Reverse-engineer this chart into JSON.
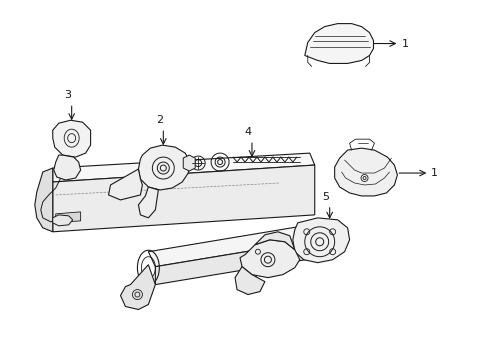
{
  "background_color": "#ffffff",
  "line_color": "#1a1a1a",
  "lw": 0.8,
  "fig_width": 4.9,
  "fig_height": 3.6,
  "dpi": 100
}
